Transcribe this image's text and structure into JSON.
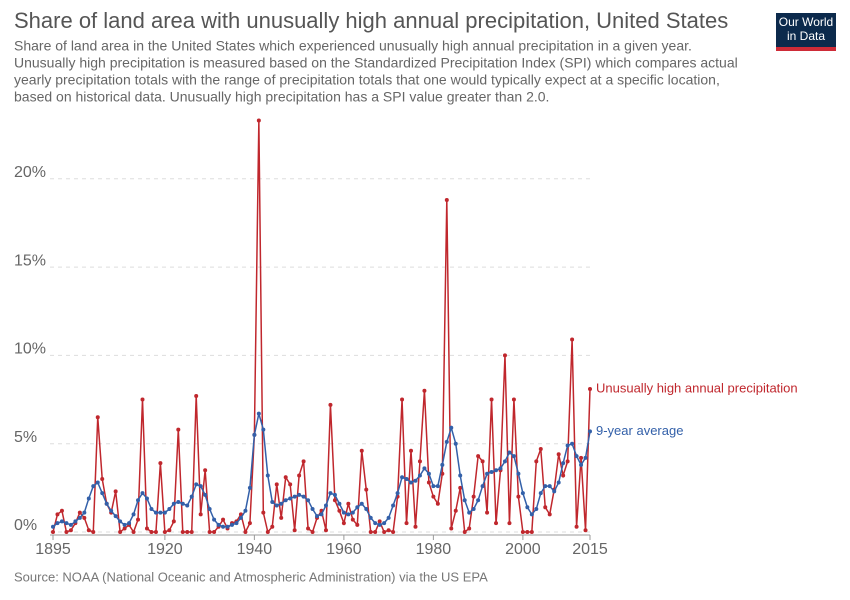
{
  "chart_data": {
    "type": "line",
    "title": "Share of land area with unusually high annual precipitation, United States",
    "subtitle": [
      "Share of land area in the United States which experienced unusually high annual precipitation in a given year.",
      "Unusually high precipitation is measured based on the Standardized Precipitation Index (SPI) which compares actual",
      "yearly precipitation totals with the range of precipitation totals that one would typically expect at a specific location,",
      "based on historical data. Unusually high precipitation has a SPI value greater than 2.0."
    ],
    "source": "Source: NOAA (National Oceanic and Atmospheric Administration) via the US EPA",
    "logo": [
      "Our World",
      "in Data"
    ],
    "x": [
      1895,
      1896,
      1897,
      1898,
      1899,
      1900,
      1901,
      1902,
      1903,
      1904,
      1905,
      1906,
      1907,
      1908,
      1909,
      1910,
      1911,
      1912,
      1913,
      1914,
      1915,
      1916,
      1917,
      1918,
      1919,
      1920,
      1921,
      1922,
      1923,
      1924,
      1925,
      1926,
      1927,
      1928,
      1929,
      1930,
      1931,
      1932,
      1933,
      1934,
      1935,
      1936,
      1937,
      1938,
      1939,
      1940,
      1941,
      1942,
      1943,
      1944,
      1945,
      1946,
      1947,
      1948,
      1949,
      1950,
      1951,
      1952,
      1953,
      1954,
      1955,
      1956,
      1957,
      1958,
      1959,
      1960,
      1961,
      1962,
      1963,
      1964,
      1965,
      1966,
      1967,
      1968,
      1969,
      1970,
      1971,
      1972,
      1973,
      1974,
      1975,
      1976,
      1977,
      1978,
      1979,
      1980,
      1981,
      1982,
      1983,
      1984,
      1985,
      1986,
      1987,
      1988,
      1989,
      1990,
      1991,
      1992,
      1993,
      1994,
      1995,
      1996,
      1997,
      1998,
      1999,
      2000,
      2001,
      2002,
      2003,
      2004,
      2005,
      2006,
      2007,
      2008,
      2009,
      2010,
      2011,
      2012,
      2013,
      2014,
      2015
    ],
    "series": [
      {
        "name": "Unusually high annual precipitation",
        "color": "#c0272d",
        "values": [
          0,
          1.0,
          1.2,
          0,
          0.1,
          0.5,
          1.1,
          0.8,
          0.1,
          0,
          6.5,
          3.0,
          1.6,
          1.1,
          2.3,
          0,
          0.2,
          0.4,
          0,
          0.7,
          7.5,
          0.2,
          0,
          0,
          3.9,
          0,
          0.1,
          0.6,
          5.8,
          0,
          0,
          0,
          7.7,
          1.0,
          3.5,
          0,
          0,
          0.3,
          0.7,
          0.2,
          0.5,
          0.6,
          1.0,
          0,
          0.5,
          5.5,
          23.3,
          1.1,
          0,
          0.3,
          2.7,
          0.8,
          3.1,
          2.7,
          0.1,
          3.2,
          4.0,
          0.2,
          0,
          0.8,
          1.2,
          0.1,
          7.2,
          1.8,
          1.2,
          0.5,
          1.6,
          0.7,
          0.4,
          4.6,
          2.4,
          0,
          0,
          0.6,
          0,
          0.1,
          0,
          2.0,
          7.5,
          0.5,
          4.6,
          0.3,
          4.0,
          8.0,
          2.8,
          2.0,
          1.6,
          3.3,
          18.8,
          0.2,
          1.2,
          2.5,
          0,
          0.2,
          2.0,
          4.3,
          4.0,
          1.1,
          7.5,
          0.5,
          3.5,
          10.0,
          0.5,
          7.5,
          2.0,
          0,
          0,
          0,
          4.0,
          4.7,
          1.4,
          1.0,
          2.4,
          4.4,
          3.2,
          4.0,
          10.9,
          0.3,
          4.2,
          0.1,
          8.1
        ]
      },
      {
        "name": "9-year average",
        "color": "#3360a9",
        "values": [
          0.3,
          0.5,
          0.6,
          0.5,
          0.4,
          0.6,
          0.8,
          1.1,
          1.9,
          2.6,
          2.8,
          2.2,
          1.6,
          1.2,
          0.9,
          0.6,
          0.4,
          0.5,
          1.0,
          1.8,
          2.2,
          1.9,
          1.3,
          1.1,
          1.1,
          1.1,
          1.3,
          1.6,
          1.7,
          1.6,
          1.5,
          2.0,
          2.7,
          2.6,
          2.1,
          1.3,
          0.7,
          0.4,
          0.3,
          0.3,
          0.4,
          0.5,
          0.8,
          1.2,
          2.5,
          5.5,
          6.7,
          5.8,
          3.2,
          1.7,
          1.5,
          1.6,
          1.8,
          1.9,
          2.0,
          2.1,
          2.0,
          1.8,
          1.3,
          0.9,
          1.0,
          1.5,
          2.2,
          2.1,
          1.6,
          1.1,
          1.0,
          1.1,
          1.4,
          1.6,
          1.3,
          0.8,
          0.5,
          0.4,
          0.5,
          0.8,
          1.5,
          2.2,
          3.1,
          3.0,
          2.8,
          2.9,
          3.2,
          3.6,
          3.3,
          2.6,
          2.6,
          3.8,
          5.1,
          5.9,
          5.0,
          3.2,
          1.8,
          1.1,
          1.3,
          1.8,
          2.6,
          3.3,
          3.4,
          3.5,
          3.6,
          4.0,
          4.5,
          4.3,
          3.3,
          2.2,
          1.4,
          1.0,
          1.3,
          2.2,
          2.6,
          2.6,
          2.3,
          2.8,
          3.9,
          4.9,
          5.0,
          4.3,
          3.8,
          4.2,
          5.7
        ]
      }
    ],
    "xlim": [
      1895,
      2015
    ],
    "xticks": [
      1895,
      1920,
      1940,
      1960,
      1980,
      2000,
      2015
    ],
    "ylim": [
      0,
      23.5
    ],
    "yticks": [
      {
        "value": 0,
        "label": "0%"
      },
      {
        "value": 5,
        "label": "5%"
      },
      {
        "value": 10,
        "label": "10%"
      },
      {
        "value": 15,
        "label": "15%"
      },
      {
        "value": 20,
        "label": "20%"
      }
    ],
    "grid": true
  }
}
